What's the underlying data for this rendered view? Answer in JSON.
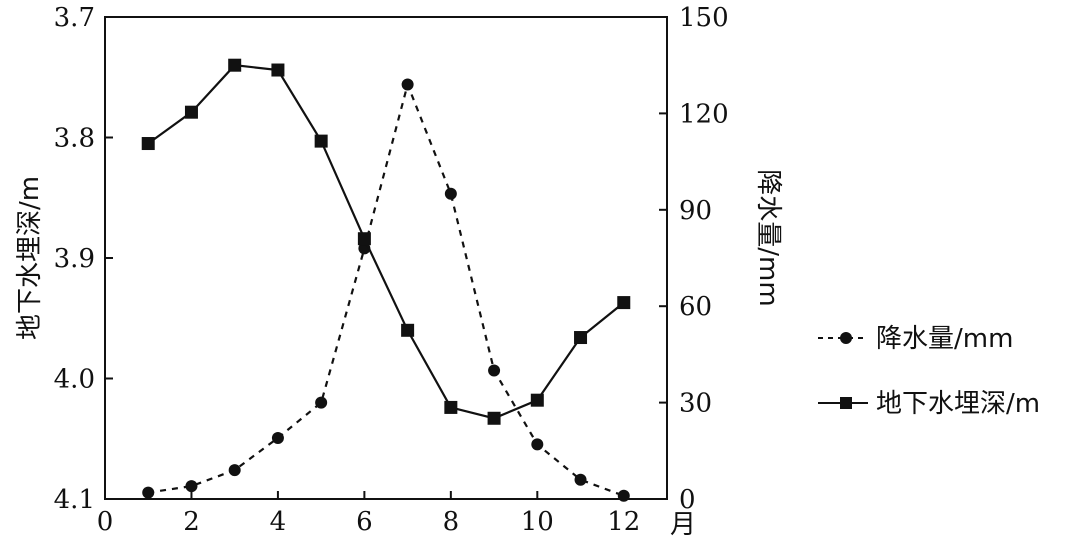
{
  "chart_data": {
    "type": "line",
    "x": [
      1,
      2,
      3,
      4,
      5,
      6,
      7,
      8,
      9,
      10,
      11,
      12
    ],
    "x_unit_label": "月",
    "xlim": [
      0,
      13
    ],
    "x_ticks": [
      "0",
      "2",
      "4",
      "6",
      "8",
      "10",
      "12"
    ],
    "left_axis": {
      "label": "地下水埋深/m",
      "range": [
        3.7,
        4.1
      ],
      "inverted": true,
      "ticks": [
        "3.7",
        "3.8",
        "3.9",
        "4.0",
        "4.1"
      ]
    },
    "right_axis": {
      "label": "降水量/mm",
      "range": [
        0,
        150
      ],
      "ticks": [
        "0",
        "30",
        "60",
        "90",
        "120",
        "150"
      ]
    },
    "series": [
      {
        "name": "降水量/mm",
        "axis": "right",
        "style": "dashed",
        "marker": "circle",
        "values": [
          2,
          4,
          9,
          19,
          30,
          78,
          129,
          95,
          40,
          17,
          6,
          1
        ]
      },
      {
        "name": "地下水埋深/m",
        "axis": "left",
        "style": "solid",
        "marker": "square",
        "values": [
          3.805,
          3.779,
          3.74,
          3.744,
          3.803,
          3.884,
          3.96,
          4.024,
          4.033,
          4.018,
          3.966,
          3.937
        ]
      }
    ],
    "grid": false,
    "legend_position": "right"
  }
}
